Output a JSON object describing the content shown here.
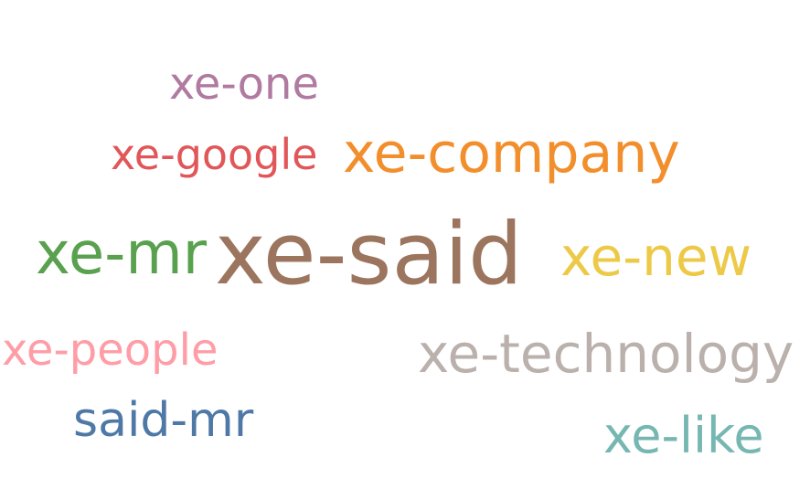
{
  "words": [
    {
      "key": "one",
      "text": "xe-one",
      "color": "#b07aa1"
    },
    {
      "key": "google",
      "text": "xe-google",
      "color": "#e15759"
    },
    {
      "key": "company",
      "text": "xe-company",
      "color": "#f28e2b"
    },
    {
      "key": "mr",
      "text": "xe-mr",
      "color": "#59a14f"
    },
    {
      "key": "said",
      "text": "xe-said",
      "color": "#9c755f"
    },
    {
      "key": "new",
      "text": "xe-new",
      "color": "#edc948"
    },
    {
      "key": "people",
      "text": "xe-people",
      "color": "#ff9da7"
    },
    {
      "key": "technology",
      "text": "xe-technology",
      "color": "#bab0ac"
    },
    {
      "key": "saidmr",
      "text": "said-mr",
      "color": "#4e79a7"
    },
    {
      "key": "like",
      "text": "xe-like",
      "color": "#76b7b2"
    }
  ]
}
